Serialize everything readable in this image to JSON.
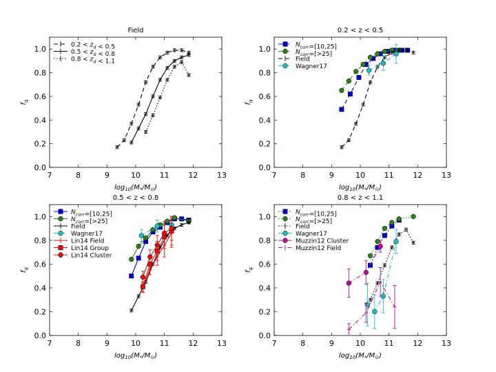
{
  "colors": {
    "field": "#000000",
    "ncorr_10_25": "#0000cc",
    "ncorr_gt25": "#2e7d1f",
    "wagner17": "#22bcc4",
    "lin14": "#dd1111",
    "muzzin12": "#b4109c"
  },
  "chart_data": [
    {
      "type": "line",
      "title": "Field",
      "xlabel": "log10(M*/M⊙)",
      "ylabel": "f_q",
      "xlim": [
        7,
        13
      ],
      "ylim": [
        0,
        1.1
      ],
      "xticks": [
        "7",
        "8",
        "9",
        "10",
        "11",
        "12",
        "13"
      ],
      "yticks": [
        "0.0",
        "0.2",
        "0.4",
        "0.6",
        "0.8",
        "1.0"
      ],
      "legend_position": "upper-left",
      "series": [
        {
          "name": "0.2 < z_d < 0.5",
          "style": "dashed",
          "marker": "none",
          "colorKey": "field",
          "x": [
            9.35,
            9.6,
            9.85,
            10.1,
            10.35,
            10.6,
            10.85,
            11.1,
            11.35,
            11.6,
            11.85
          ],
          "y": [
            0.17,
            0.23,
            0.37,
            0.53,
            0.72,
            0.85,
            0.93,
            0.97,
            0.99,
            0.99,
            0.97
          ]
        },
        {
          "name": "0.5 < z_d < 0.8",
          "style": "solid",
          "marker": "none",
          "colorKey": "field",
          "x": [
            9.85,
            10.1,
            10.35,
            10.6,
            10.85,
            11.1,
            11.35,
            11.6,
            11.85
          ],
          "y": [
            0.21,
            0.33,
            0.45,
            0.6,
            0.74,
            0.84,
            0.9,
            0.93,
            0.95
          ]
        },
        {
          "name": "0.8 < z_d < 1.1",
          "style": "dotted",
          "marker": "none",
          "colorKey": "field",
          "x": [
            10.35,
            10.6,
            10.85,
            11.1,
            11.35,
            11.6,
            11.85
          ],
          "y": [
            0.3,
            0.44,
            0.59,
            0.74,
            0.85,
            0.89,
            0.78
          ]
        }
      ]
    },
    {
      "type": "line",
      "title": "0.2 < z < 0.5",
      "xlabel": "log10(M*/M⊙)",
      "ylabel": "f_q",
      "xlim": [
        7,
        13
      ],
      "ylim": [
        0,
        1.1
      ],
      "xticks": [
        "7",
        "8",
        "9",
        "10",
        "11",
        "12",
        "13"
      ],
      "yticks": [
        "0.0",
        "0.2",
        "0.4",
        "0.6",
        "0.8",
        "1.0"
      ],
      "legend_position": "upper-left",
      "series": [
        {
          "name": "N_corr=[10,25]",
          "style": "dashed",
          "marker": "square",
          "colorKey": "ncorr_10_25",
          "x": [
            9.35,
            9.65,
            9.95,
            10.2,
            10.45,
            10.7,
            10.95,
            11.2,
            11.45,
            11.65
          ],
          "y": [
            0.49,
            0.62,
            0.76,
            0.87,
            0.92,
            0.96,
            0.98,
            0.99,
            0.99,
            0.99
          ]
        },
        {
          "name": "N_corr=[>25]",
          "style": "dashed",
          "marker": "circle",
          "colorKey": "ncorr_gt25",
          "x": [
            9.35,
            9.6,
            9.85,
            10.1,
            10.35,
            10.6,
            10.85,
            11.1,
            11.35
          ],
          "y": [
            0.65,
            0.73,
            0.81,
            0.87,
            0.93,
            0.96,
            0.98,
            0.99,
            0.99
          ]
        },
        {
          "name": "Field",
          "style": "dashed",
          "marker": "none",
          "colorKey": "field",
          "x": [
            9.35,
            9.6,
            9.85,
            10.1,
            10.35,
            10.6,
            10.85,
            11.1,
            11.35,
            11.6,
            11.85
          ],
          "y": [
            0.17,
            0.23,
            0.37,
            0.53,
            0.72,
            0.85,
            0.93,
            0.97,
            0.99,
            0.99,
            0.97
          ]
        },
        {
          "name": "Wagner17",
          "style": "dashed",
          "marker": "circle",
          "colorKey": "wagner17",
          "x": [
            10.3,
            10.8,
            11.25
          ],
          "y": [
            0.82,
            0.88,
            0.96
          ],
          "yerr": [
            0.04,
            0.06,
            0.08
          ]
        }
      ]
    },
    {
      "type": "line",
      "title": "0.5 < z < 0.8",
      "xlabel": "log10(M*/M⊙)",
      "ylabel": "f_q",
      "xlim": [
        7,
        13
      ],
      "ylim": [
        0,
        1.1
      ],
      "xticks": [
        "7",
        "8",
        "9",
        "10",
        "11",
        "12",
        "13"
      ],
      "yticks": [
        "0.0",
        "0.2",
        "0.4",
        "0.6",
        "0.8",
        "1.0"
      ],
      "legend_position": "upper-left",
      "series": [
        {
          "name": "N_corr=[10,25]",
          "style": "solid",
          "marker": "square",
          "colorKey": "ncorr_10_25",
          "x": [
            9.85,
            10.1,
            10.35,
            10.6,
            10.85,
            11.1,
            11.35,
            11.6,
            11.85
          ],
          "y": [
            0.5,
            0.65,
            0.79,
            0.87,
            0.91,
            0.95,
            0.98,
            0.98,
            0.97
          ]
        },
        {
          "name": "N_corr=[>25]",
          "style": "solid",
          "marker": "circle",
          "colorKey": "ncorr_gt25",
          "x": [
            9.85,
            10.1,
            10.35,
            10.6,
            10.85,
            11.1,
            11.35,
            11.85
          ],
          "y": [
            0.64,
            0.75,
            0.82,
            0.89,
            0.93,
            0.96,
            0.99,
            0.96
          ]
        },
        {
          "name": "Field",
          "style": "solid",
          "marker": "none",
          "colorKey": "field",
          "x": [
            9.85,
            10.1,
            10.35,
            10.6,
            10.85,
            11.1,
            11.35,
            11.6,
            11.85
          ],
          "y": [
            0.21,
            0.33,
            0.45,
            0.6,
            0.74,
            0.84,
            0.9,
            0.93,
            0.95
          ]
        },
        {
          "name": "Wagner17",
          "style": "dashed",
          "marker": "circle",
          "colorKey": "wagner17",
          "x": [
            10.2,
            10.75,
            11.25
          ],
          "y": [
            0.84,
            0.92,
            0.93
          ],
          "yerr": [
            0.05,
            0.05,
            0.06
          ]
        },
        {
          "name": "Lin14 Field",
          "style": "solid",
          "marker": "none",
          "colorKey": "lin14",
          "x": [
            10.25,
            10.5,
            10.75,
            11.0,
            11.25
          ],
          "y": [
            0.4,
            0.56,
            0.66,
            0.76,
            0.86
          ],
          "yerr": [
            0.04,
            0.05,
            0.07,
            0.1,
            0.12
          ]
        },
        {
          "name": "Lin14 Group",
          "style": "solid",
          "marker": "square",
          "colorKey": "lin14",
          "x": [
            10.25,
            10.5,
            10.75,
            11.0,
            11.25
          ],
          "y": [
            0.41,
            0.6,
            0.71,
            0.83,
            0.88
          ],
          "yerr": [
            0.04,
            0.05,
            0.08,
            0.1,
            0.12
          ]
        },
        {
          "name": "Lin14 Cluster",
          "style": "solid",
          "marker": "circle",
          "colorKey": "lin14",
          "x": [
            10.25,
            10.5,
            10.75,
            11.0,
            11.25
          ],
          "y": [
            0.49,
            0.66,
            0.76,
            0.86,
            0.9
          ],
          "yerr": [
            0.05,
            0.06,
            0.08,
            0.1,
            0.1
          ]
        }
      ]
    },
    {
      "type": "line",
      "title": "0.8 < z < 1.1",
      "xlabel": "log10(M*/M⊙)",
      "ylabel": "f_q",
      "xlim": [
        7,
        13
      ],
      "ylim": [
        0,
        1.1
      ],
      "xticks": [
        "7",
        "8",
        "9",
        "10",
        "11",
        "12",
        "13"
      ],
      "yticks": [
        "0.0",
        "0.2",
        "0.4",
        "0.6",
        "0.8",
        "1.0"
      ],
      "legend_position": "upper-left",
      "series": [
        {
          "name": "N_corr=[10,25]",
          "style": "dotted",
          "marker": "square",
          "colorKey": "ncorr_10_25",
          "x": [
            10.35,
            10.6,
            10.85,
            11.1,
            11.35
          ],
          "y": [
            0.59,
            0.74,
            0.84,
            0.92,
            0.97
          ]
        },
        {
          "name": "N_corr=[>25]",
          "style": "dotted",
          "marker": "circle",
          "colorKey": "ncorr_gt25",
          "x": [
            10.35,
            10.6,
            10.85,
            11.1,
            11.35,
            11.85
          ],
          "y": [
            0.67,
            0.79,
            0.9,
            0.95,
            0.98,
            1.0
          ]
        },
        {
          "name": "Field",
          "style": "dotted",
          "marker": "none",
          "colorKey": "field",
          "x": [
            10.35,
            10.6,
            10.85,
            11.1,
            11.35,
            11.6,
            11.85
          ],
          "y": [
            0.3,
            0.44,
            0.59,
            0.74,
            0.85,
            0.89,
            0.78
          ]
        },
        {
          "name": "Wagner17",
          "style": "dashdot",
          "marker": "circle",
          "colorKey": "wagner17",
          "x": [
            10.25,
            10.5,
            10.8,
            11.25
          ],
          "y": [
            0.26,
            0.2,
            0.33,
            0.79
          ],
          "yerr": [
            0.18,
            0.14,
            0.14,
            0.1
          ]
        },
        {
          "name": "Muzzin12 Cluster",
          "style": "dashdot",
          "marker": "circle",
          "colorKey": "muzzin12",
          "x": [
            9.6,
            10.2,
            10.7
          ],
          "y": [
            0.44,
            0.53,
            0.75
          ],
          "yerr": [
            0.12,
            0.1,
            0.05
          ]
        },
        {
          "name": "Muzzin12 Field",
          "style": "dashdot",
          "marker": "none",
          "colorKey": "muzzin12",
          "x": [
            9.6,
            10.2,
            10.7,
            11.2
          ],
          "y": [
            0.05,
            0.19,
            0.45,
            0.24
          ],
          "yerr": [
            0.05,
            0.08,
            0.12,
            0.18
          ]
        }
      ]
    }
  ]
}
